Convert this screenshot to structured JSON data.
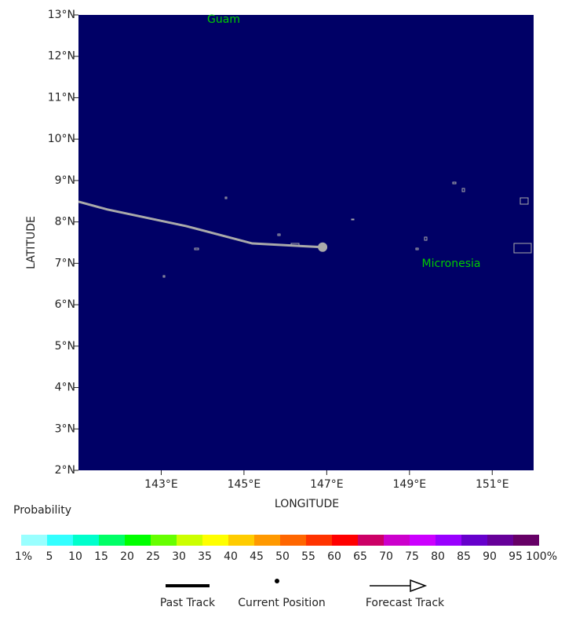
{
  "chart_data": {
    "type": "track-map",
    "x_label": "LONGITUDE",
    "y_label": "LATITUDE",
    "background_color": "#000066",
    "xlim": [
      141,
      152
    ],
    "ylim": [
      2,
      13
    ],
    "xticks": [
      {
        "value": 143,
        "label": "143°E"
      },
      {
        "value": 145,
        "label": "145°E"
      },
      {
        "value": 147,
        "label": "147°E"
      },
      {
        "value": 149,
        "label": "149°E"
      },
      {
        "value": 151,
        "label": "151°E"
      }
    ],
    "yticks": [
      {
        "value": 2,
        "label": "2°N"
      },
      {
        "value": 3,
        "label": "3°N"
      },
      {
        "value": 4,
        "label": "4°N"
      },
      {
        "value": 5,
        "label": "5°N"
      },
      {
        "value": 6,
        "label": "6°N"
      },
      {
        "value": 7,
        "label": "7°N"
      },
      {
        "value": 8,
        "label": "8°N"
      },
      {
        "value": 9,
        "label": "9°N"
      },
      {
        "value": 10,
        "label": "10°N"
      },
      {
        "value": 11,
        "label": "11°N"
      },
      {
        "value": 12,
        "label": "12°N"
      },
      {
        "value": 13,
        "label": "13°N"
      }
    ],
    "annotations": [
      "Guam",
      "Micronesia"
    ],
    "annotation_color": "#00cc00",
    "past_track": {
      "color": "#aaaaaa",
      "x": [
        141.0,
        141.7,
        143.6,
        145.2,
        146.9
      ],
      "y": [
        8.49,
        8.3,
        7.9,
        7.48,
        7.39
      ]
    },
    "current_position": {
      "color": "#aaaaaa",
      "x": [
        146.9
      ],
      "y": [
        7.39
      ]
    },
    "colorbar": {
      "title": "Probability",
      "colors": [
        "#99ffff",
        "#33ffff",
        "#00ffcc",
        "#00ff66",
        "#00ff00",
        "#66ff00",
        "#ccff00",
        "#ffff00",
        "#ffcc00",
        "#ff9900",
        "#ff6600",
        "#ff3300",
        "#ff0000",
        "#cc0066",
        "#cc00cc",
        "#cc00ff",
        "#9900ff",
        "#6600cc",
        "#660099",
        "#660066"
      ],
      "labels": [
        "1%",
        "5",
        "10",
        "15",
        "20",
        "25",
        "30",
        "35",
        "40",
        "45",
        "50",
        "55",
        "60",
        "65",
        "70",
        "75",
        "80",
        "85",
        "90",
        "95",
        "100%"
      ]
    },
    "legend": [
      "Past Track",
      "Current Position",
      "Forecast Track"
    ]
  }
}
